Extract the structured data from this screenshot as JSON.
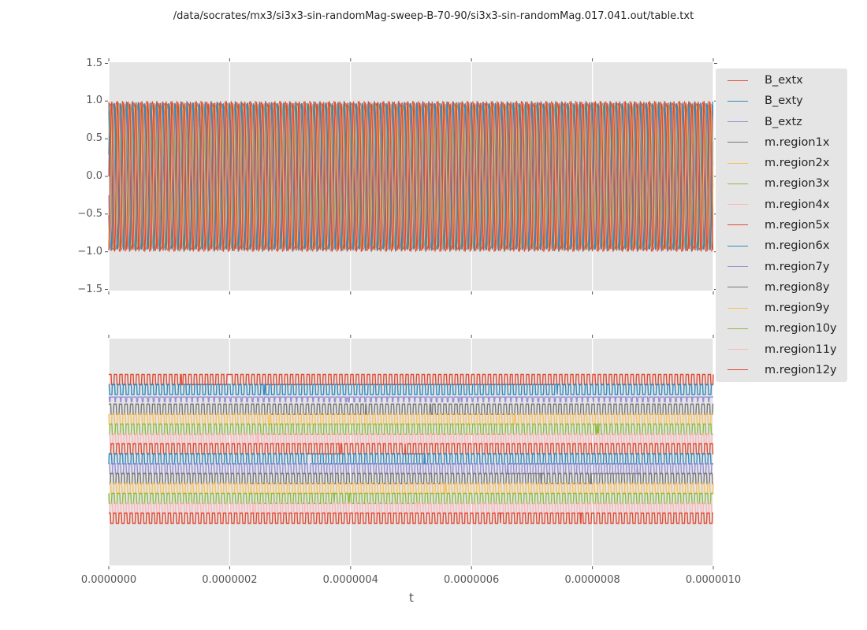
{
  "figure": {
    "title": "/data/socrates/mx3/si3x3-sin-randomMag-sweep-B-70-90/si3x3-sin-randomMag.017.041.out/table.txt",
    "background": "#ffffff",
    "panel_background": "#e5e5e5",
    "grid_color": "#ffffff",
    "tick_color": "#555555",
    "label_color": "#555555",
    "text_color": "#262626"
  },
  "axes": {
    "xlabel": "t",
    "x_tick_labels": [
      "0.0000000",
      "0.0000002",
      "0.0000004",
      "0.0000006",
      "0.0000008",
      "0.0000010"
    ],
    "top_y_tick_labels": [
      "1.5",
      "1.0",
      "0.5",
      "0.0",
      "−0.5",
      "−1.0",
      "−1.5"
    ],
    "bottom_y_tick_labels": []
  },
  "legend": {
    "items": [
      {
        "label": "B_extx",
        "color": "#E24A33"
      },
      {
        "label": "B_exty",
        "color": "#348ABD"
      },
      {
        "label": "B_extz",
        "color": "#988ED5"
      },
      {
        "label": "m.region1x",
        "color": "#777777"
      },
      {
        "label": "m.region2x",
        "color": "#FBC15E"
      },
      {
        "label": "m.region3x",
        "color": "#8EBA42"
      },
      {
        "label": "m.region4x",
        "color": "#FFB5B8"
      },
      {
        "label": "m.region5x",
        "color": "#E24A33"
      },
      {
        "label": "m.region6x",
        "color": "#348ABD"
      },
      {
        "label": "m.region7y",
        "color": "#988ED5"
      },
      {
        "label": "m.region8y",
        "color": "#777777"
      },
      {
        "label": "m.region9y",
        "color": "#FBC15E"
      },
      {
        "label": "m.region10y",
        "color": "#8EBA42"
      },
      {
        "label": "m.region11y",
        "color": "#FFB5B8"
      },
      {
        "label": "m.region12y",
        "color": "#E24A33"
      }
    ]
  },
  "chart_data": [
    {
      "type": "line",
      "panel": "top",
      "title": "",
      "xlabel": "t",
      "ylabel": "",
      "xlim": [
        0,
        1e-06
      ],
      "ylim": [
        -1.52,
        1.52
      ],
      "x_tick_values": [
        0,
        2e-07,
        4e-07,
        6e-07,
        8e-07,
        1e-06
      ],
      "x_tick_labels": [
        "0.0000000",
        "0.0000002",
        "0.0000004",
        "0.0000006",
        "0.0000008",
        "0.0000010"
      ],
      "y_tick_values": [
        1.5,
        1.0,
        0.5,
        0.0,
        -0.5,
        -1.0,
        -1.5
      ],
      "grid": "vertical-only",
      "legend_position": "outside-right",
      "description": "All 15 series oscillate between about -1 and +1 at ~100 cycles across the 0..1e-6 s window, densely overlapping into a solid band; red traces drawn last dominate with blue edges visible.",
      "series": [
        {
          "name": "B_extx",
          "color": "#E24A33",
          "waveform": "sine",
          "amplitude": 1.0,
          "cycles": 100,
          "phase": 0.0
        },
        {
          "name": "B_exty",
          "color": "#348ABD",
          "waveform": "sine",
          "amplitude": 1.0,
          "cycles": 100,
          "phase": 2.1
        },
        {
          "name": "B_extz",
          "color": "#988ED5",
          "waveform": "sine",
          "amplitude": 0.98,
          "cycles": 100,
          "phase": 4.2
        },
        {
          "name": "m.region1x",
          "color": "#777777",
          "waveform": "sine",
          "amplitude": 0.97,
          "cycles": 100,
          "phase": 0.3
        },
        {
          "name": "m.region2x",
          "color": "#FBC15E",
          "waveform": "sine",
          "amplitude": 0.97,
          "cycles": 100,
          "phase": 0.6
        },
        {
          "name": "m.region3x",
          "color": "#8EBA42",
          "waveform": "sine",
          "amplitude": 0.97,
          "cycles": 100,
          "phase": 0.9
        },
        {
          "name": "m.region4x",
          "color": "#FFB5B8",
          "waveform": "sine",
          "amplitude": 0.97,
          "cycles": 100,
          "phase": 1.2
        },
        {
          "name": "m.region5x",
          "color": "#E24A33",
          "waveform": "sine",
          "amplitude": 0.99,
          "cycles": 100,
          "phase": 1.5
        },
        {
          "name": "m.region6x",
          "color": "#348ABD",
          "waveform": "sine",
          "amplitude": 0.97,
          "cycles": 100,
          "phase": 1.8
        },
        {
          "name": "m.region7y",
          "color": "#988ED5",
          "waveform": "sine",
          "amplitude": 0.97,
          "cycles": 100,
          "phase": 3.4
        },
        {
          "name": "m.region8y",
          "color": "#777777",
          "waveform": "sine",
          "amplitude": 0.97,
          "cycles": 100,
          "phase": 3.7
        },
        {
          "name": "m.region9y",
          "color": "#FBC15E",
          "waveform": "sine",
          "amplitude": 0.97,
          "cycles": 100,
          "phase": 4.0
        },
        {
          "name": "m.region10y",
          "color": "#8EBA42",
          "waveform": "sine",
          "amplitude": 0.97,
          "cycles": 100,
          "phase": 4.3
        },
        {
          "name": "m.region11y",
          "color": "#FFB5B8",
          "waveform": "sine",
          "amplitude": 0.98,
          "cycles": 100,
          "phase": 4.6
        },
        {
          "name": "m.region12y",
          "color": "#E24A33",
          "waveform": "sine",
          "amplitude": 1.0,
          "cycles": 100,
          "phase": 4.9
        }
      ]
    },
    {
      "type": "line",
      "panel": "bottom",
      "title": "",
      "xlabel": "t",
      "ylabel": "",
      "xlim": [
        0,
        1e-06
      ],
      "x_tick_values": [
        0,
        2e-07,
        4e-07,
        6e-07,
        8e-07,
        1e-06
      ],
      "grid": "vertical-only",
      "y_tick_labels": [],
      "description": "Same 15 series shown as square-wave traces stacked with vertical offsets (no y tick labels); center_frac/amp_frac give each band's vertical center and half-height as a fraction of panel height, duty is the fraction of each period spent at the top level.",
      "series": [
        {
          "name": "B_extx",
          "color": "#E24A33",
          "waveform": "square",
          "cycles": 110,
          "duty": 0.5,
          "phase": 0.0,
          "center_frac": 0.1806,
          "amp_frac": 0.0226
        },
        {
          "name": "B_exty",
          "color": "#348ABD",
          "waveform": "square",
          "cycles": 110,
          "duty": 0.48,
          "phase": 0.37,
          "center_frac": 0.2243,
          "amp_frac": 0.0226
        },
        {
          "name": "B_extz",
          "color": "#988ED5",
          "waveform": "square",
          "cycles": 110,
          "duty": 0.82,
          "phase": 0.74,
          "center_frac": 0.2679,
          "amp_frac": 0.0104
        },
        {
          "name": "m.region1x",
          "color": "#777777",
          "waveform": "square",
          "cycles": 110,
          "duty": 0.5,
          "phase": 0.11,
          "center_frac": 0.3116,
          "amp_frac": 0.0226
        },
        {
          "name": "m.region2x",
          "color": "#FBC15E",
          "waveform": "square",
          "cycles": 110,
          "duty": 0.52,
          "phase": 0.48,
          "center_frac": 0.3552,
          "amp_frac": 0.0226
        },
        {
          "name": "m.region3x",
          "color": "#8EBA42",
          "waveform": "square",
          "cycles": 110,
          "duty": 0.48,
          "phase": 0.85,
          "center_frac": 0.3989,
          "amp_frac": 0.0226
        },
        {
          "name": "m.region4x",
          "color": "#FFB5B8",
          "waveform": "square",
          "cycles": 110,
          "duty": 0.5,
          "phase": 0.22,
          "center_frac": 0.4425,
          "amp_frac": 0.0226
        },
        {
          "name": "m.region5x",
          "color": "#E24A33",
          "waveform": "square",
          "cycles": 110,
          "duty": 0.5,
          "phase": 0.59,
          "center_frac": 0.4862,
          "amp_frac": 0.0226
        },
        {
          "name": "m.region6x",
          "color": "#348ABD",
          "waveform": "square",
          "cycles": 110,
          "duty": 0.47,
          "phase": 0.96,
          "center_frac": 0.5298,
          "amp_frac": 0.0226
        },
        {
          "name": "m.region7y",
          "color": "#988ED5",
          "waveform": "square",
          "cycles": 110,
          "duty": 0.52,
          "phase": 0.33,
          "center_frac": 0.5735,
          "amp_frac": 0.0226
        },
        {
          "name": "m.region8y",
          "color": "#777777",
          "waveform": "square",
          "cycles": 110,
          "duty": 0.5,
          "phase": 0.7,
          "center_frac": 0.6171,
          "amp_frac": 0.0226
        },
        {
          "name": "m.region9y",
          "color": "#FBC15E",
          "waveform": "square",
          "cycles": 110,
          "duty": 0.48,
          "phase": 0.07,
          "center_frac": 0.6608,
          "amp_frac": 0.0226
        },
        {
          "name": "m.region10y",
          "color": "#8EBA42",
          "waveform": "square",
          "cycles": 110,
          "duty": 0.5,
          "phase": 0.44,
          "center_frac": 0.7044,
          "amp_frac": 0.0226
        },
        {
          "name": "m.region11y",
          "color": "#FFB5B8",
          "waveform": "square",
          "cycles": 110,
          "duty": 0.52,
          "phase": 0.81,
          "center_frac": 0.7481,
          "amp_frac": 0.0226
        },
        {
          "name": "m.region12y",
          "color": "#E24A33",
          "waveform": "square",
          "cycles": 110,
          "duty": 0.5,
          "phase": 0.18,
          "center_frac": 0.7917,
          "amp_frac": 0.0226
        }
      ]
    }
  ]
}
